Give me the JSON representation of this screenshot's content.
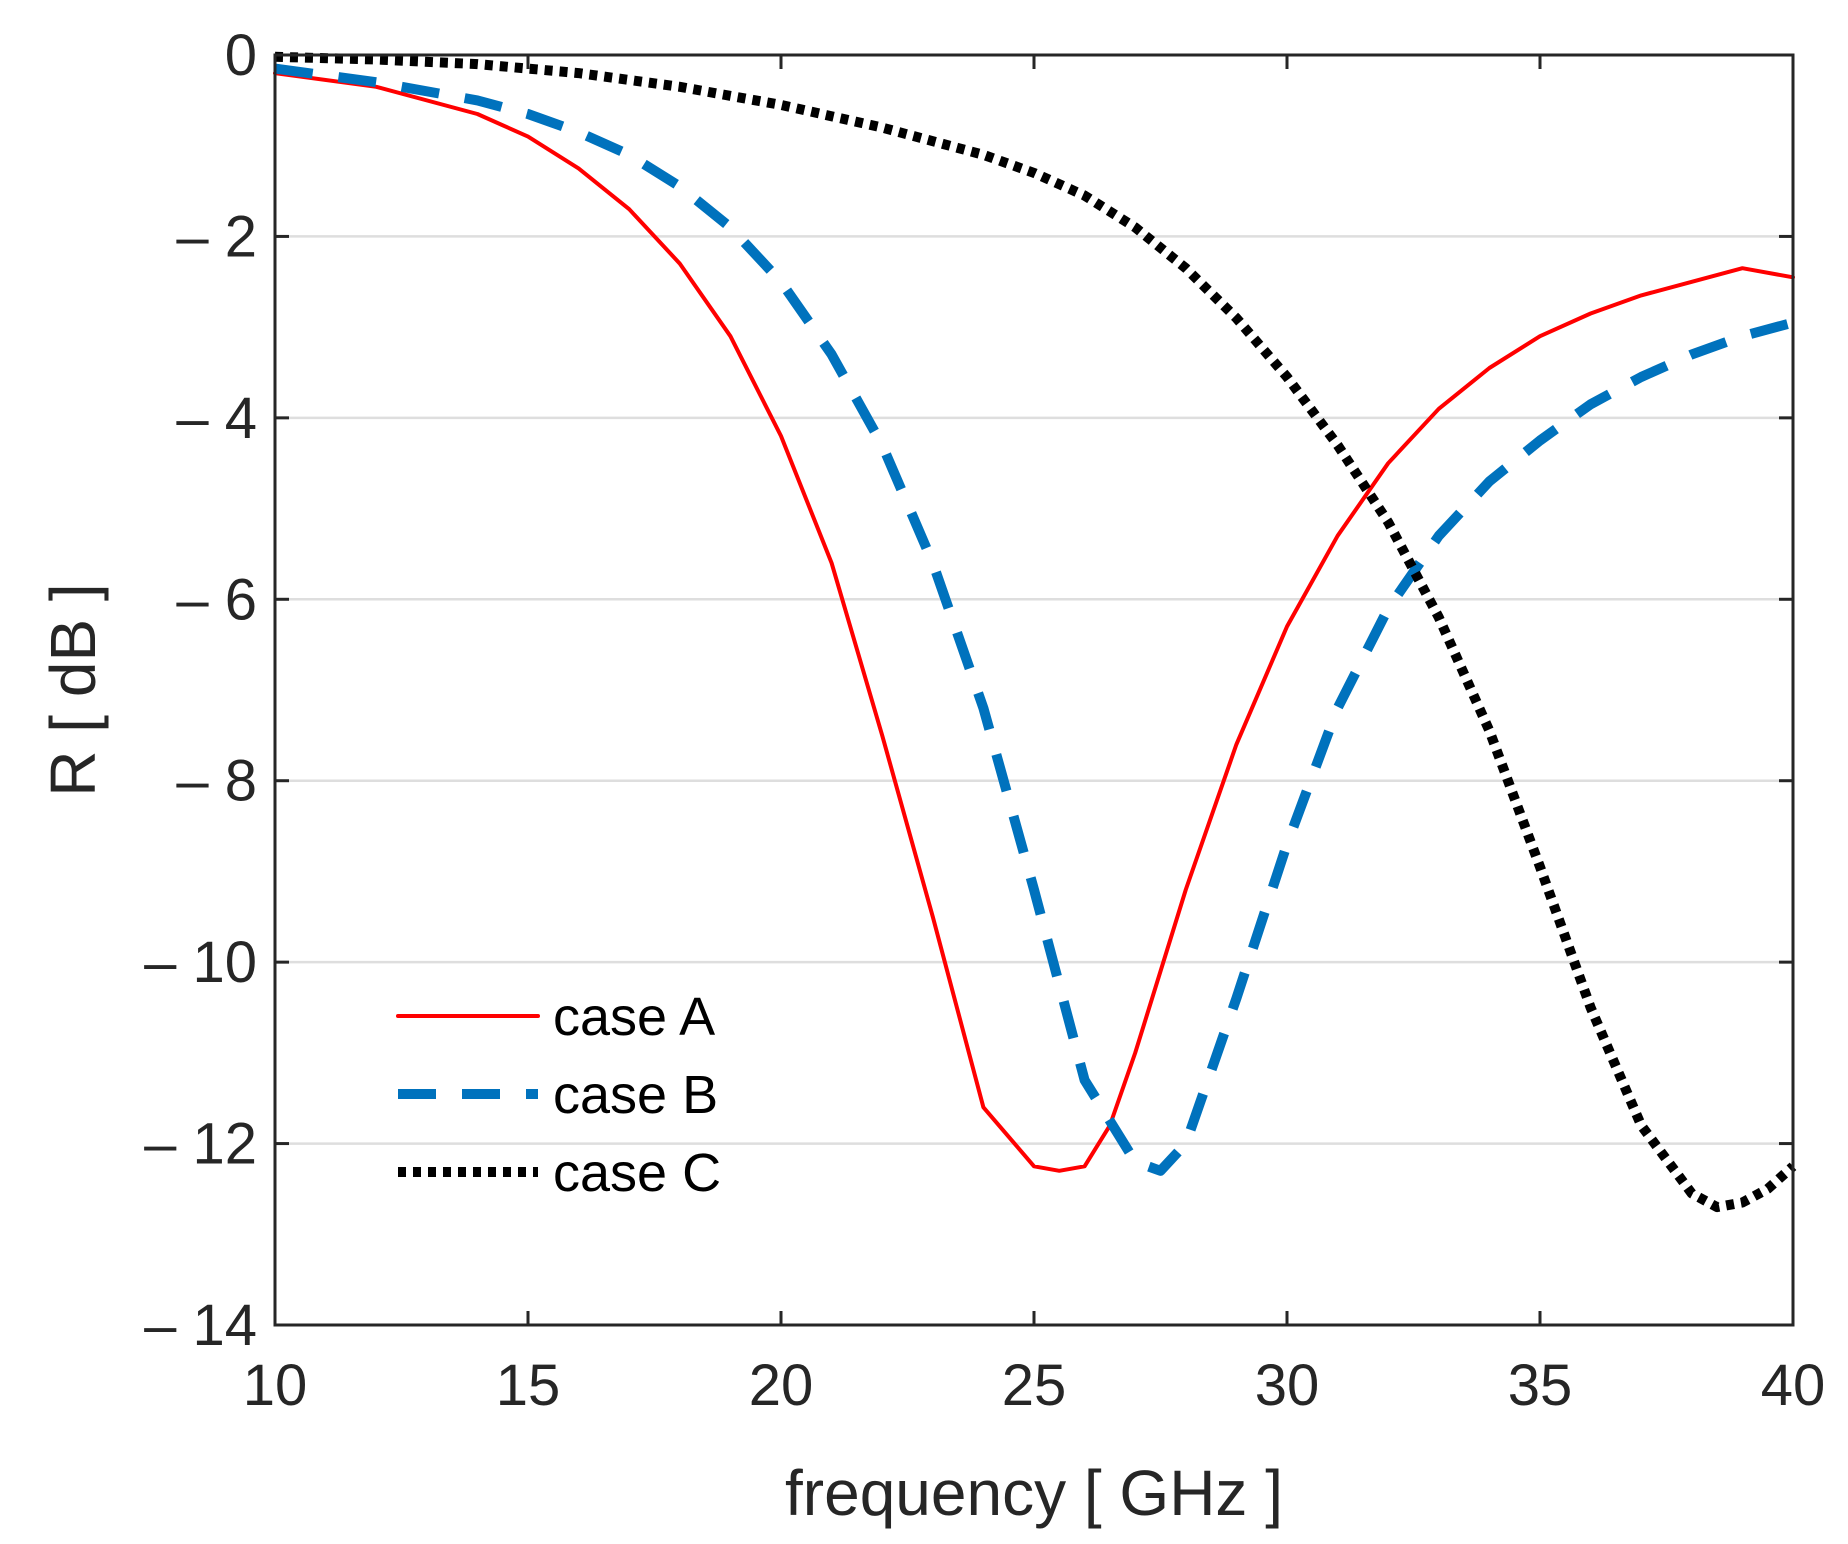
{
  "chart_data": {
    "type": "line",
    "title": "",
    "xlabel": "frequency [ GHz ]",
    "ylabel": "R   [ dB ]",
    "xlim": [
      10,
      40
    ],
    "ylim": [
      -14,
      0
    ],
    "grid": "horizontal",
    "x_ticks": [
      10,
      15,
      20,
      25,
      30,
      35,
      40
    ],
    "x_tick_labels": [
      "10",
      "15",
      "20",
      "25",
      "30",
      "35",
      "40"
    ],
    "y_ticks": [
      0,
      -2,
      -4,
      -6,
      -8,
      -10,
      -12,
      -14
    ],
    "y_tick_labels": [
      "0",
      "– 2",
      "– 4",
      "– 6",
      "– 8",
      "– 10",
      "– 12",
      "– 14"
    ],
    "legend_position": "lower-left",
    "series": [
      {
        "name": "case A",
        "color": "#ff0000",
        "style": "solid",
        "x": [
          10,
          12,
          14,
          15,
          16,
          17,
          18,
          19,
          20,
          21,
          22,
          23,
          24,
          25,
          25.5,
          26,
          26.5,
          27,
          28,
          29,
          30,
          31,
          32,
          33,
          34,
          35,
          36,
          37,
          38,
          39,
          40
        ],
        "y": [
          -0.2,
          -0.35,
          -0.65,
          -0.9,
          -1.25,
          -1.7,
          -2.3,
          -3.1,
          -4.2,
          -5.6,
          -7.5,
          -9.5,
          -11.6,
          -12.25,
          -12.3,
          -12.25,
          -11.8,
          -11.0,
          -9.2,
          -7.6,
          -6.3,
          -5.3,
          -4.5,
          -3.9,
          -3.45,
          -3.1,
          -2.85,
          -2.65,
          -2.5,
          -2.35,
          -2.45
        ]
      },
      {
        "name": "case B",
        "color": "#0072bd",
        "style": "dashed",
        "x": [
          10,
          12,
          14,
          15,
          16,
          17,
          18,
          19,
          20,
          21,
          22,
          23,
          24,
          25,
          26,
          27,
          27.5,
          28,
          29,
          30,
          31,
          32,
          33,
          34,
          35,
          36,
          37,
          38,
          39,
          40
        ],
        "y": [
          -0.15,
          -0.3,
          -0.5,
          -0.65,
          -0.85,
          -1.1,
          -1.45,
          -1.9,
          -2.5,
          -3.3,
          -4.3,
          -5.6,
          -7.2,
          -9.2,
          -11.3,
          -12.2,
          -12.3,
          -12.0,
          -10.4,
          -8.7,
          -7.2,
          -6.1,
          -5.3,
          -4.7,
          -4.25,
          -3.85,
          -3.55,
          -3.3,
          -3.1,
          -2.95
        ]
      },
      {
        "name": "case C",
        "color": "#000000",
        "style": "dotted",
        "x": [
          10,
          12,
          14,
          16,
          18,
          20,
          22,
          24,
          25,
          26,
          27,
          28,
          29,
          30,
          31,
          32,
          33,
          34,
          35,
          36,
          37,
          38,
          38.5,
          39,
          39.5,
          40
        ],
        "y": [
          -0.02,
          -0.05,
          -0.1,
          -0.2,
          -0.35,
          -0.55,
          -0.8,
          -1.1,
          -1.3,
          -1.55,
          -1.9,
          -2.35,
          -2.9,
          -3.55,
          -4.3,
          -5.15,
          -6.2,
          -7.45,
          -8.95,
          -10.5,
          -11.8,
          -12.55,
          -12.7,
          -12.65,
          -12.5,
          -12.25
        ]
      }
    ]
  }
}
